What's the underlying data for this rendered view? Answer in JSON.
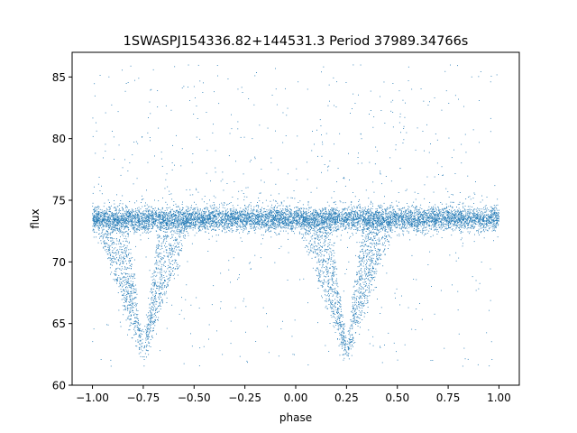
{
  "chart_data": {
    "type": "scatter",
    "title": "1SWASPJ154336.82+144531.3 Period 37989.34766s",
    "xlabel": "phase",
    "ylabel": "flux",
    "xlim": [
      -1.1,
      1.1
    ],
    "ylim": [
      60.0,
      87.0
    ],
    "xticks": [
      -1.0,
      -0.75,
      -0.5,
      -0.25,
      0.0,
      0.25,
      0.5,
      0.75,
      1.0
    ],
    "xtick_labels": [
      "−1.00",
      "−0.75",
      "−0.50",
      "−0.25",
      "0.00",
      "0.25",
      "0.50",
      "0.75",
      "1.00"
    ],
    "yticks": [
      60,
      65,
      70,
      75,
      80,
      85
    ],
    "ytick_labels": [
      "60",
      "65",
      "70",
      "75",
      "80",
      "85"
    ],
    "grid": false,
    "legend": "none",
    "marker_color": "#1f77b4",
    "phase_range": [
      -1.0,
      1.0
    ],
    "baseline_flux": 73.5,
    "baseline_scatter_range": [
      72.2,
      74.8
    ],
    "eclipse_minima": [
      {
        "phase": -0.75,
        "flux": 63.0
      },
      {
        "phase": 0.25,
        "flux": 63.0
      }
    ],
    "eclipse_depth_range": [
      61.5,
      63.5
    ],
    "outlier_flux_range": [
      74.8,
      86.0
    ]
  }
}
